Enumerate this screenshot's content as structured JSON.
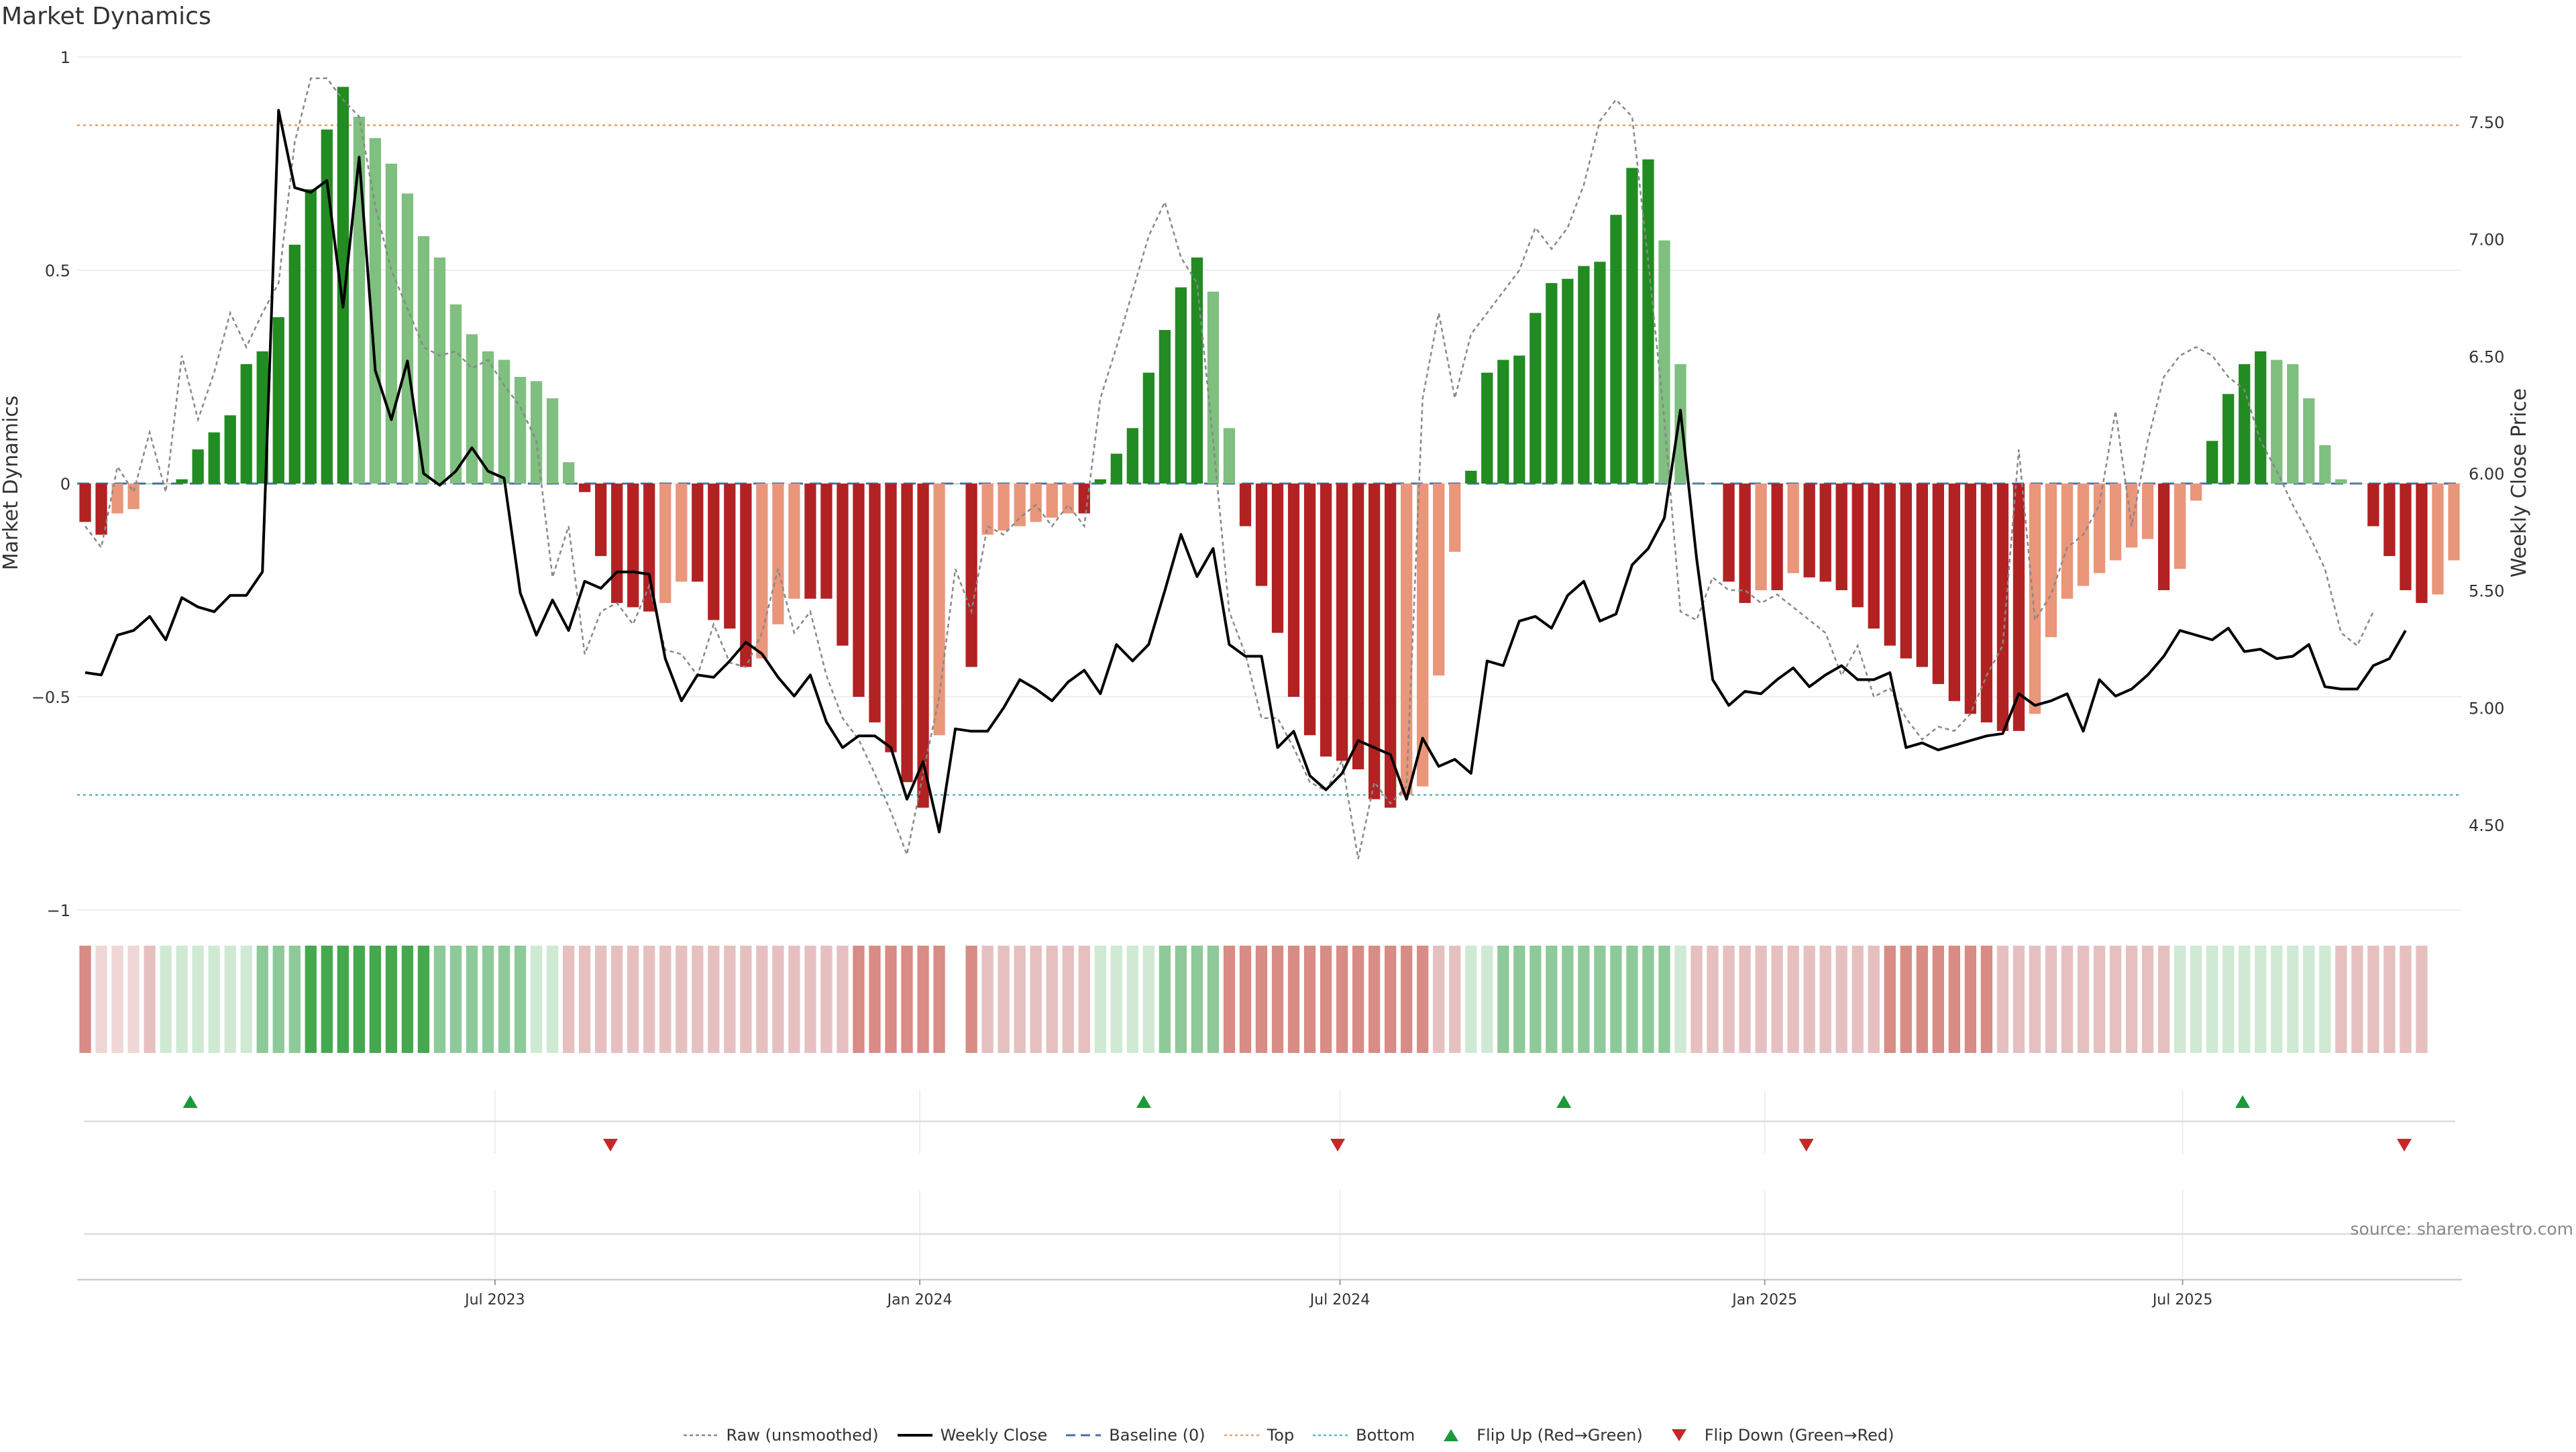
{
  "title": "Market Dynamics",
  "source": "source: sharemaestro.com",
  "colors": {
    "green_strong": "#228b22",
    "green_light": "#7fbf7f",
    "red_strong": "#b22222",
    "red_light": "#e9967a",
    "raw": "#888888",
    "close": "#000000",
    "baseline": "#4a6fa5",
    "top": "#e8a06a",
    "bottom": "#5ab4c8",
    "flip_up": "#1a9a3a",
    "flip_down": "#c62828"
  },
  "legend": [
    {
      "key": "raw",
      "label": "Raw (unsmoothed)",
      "icon": "dotted-line-icon"
    },
    {
      "key": "close",
      "label": "Weekly Close",
      "icon": "solid-line-icon"
    },
    {
      "key": "baseline",
      "label": "Baseline (0)",
      "icon": "dashed-line-icon"
    },
    {
      "key": "top",
      "label": "Top",
      "icon": "dotted-line-icon"
    },
    {
      "key": "bottom",
      "label": "Bottom",
      "icon": "dotted-line-icon"
    },
    {
      "key": "flip_up",
      "label": "Flip Up (Red→Green)",
      "icon": "triangle-up-icon"
    },
    {
      "key": "flip_down",
      "label": "Flip Down (Green→Red)",
      "icon": "triangle-down-icon"
    }
  ],
  "chart_data": {
    "type": "bar",
    "title": "Market Dynamics",
    "ylabel": "Market Dynamics",
    "y2label": "Weekly Close Price",
    "ylim": [
      -1,
      1
    ],
    "y2lim": [
      4.2,
      7.75
    ],
    "yticks": [
      "1",
      "0.5",
      "0",
      "−0.5",
      "−1"
    ],
    "y2ticks": [
      "7.50",
      "7.00",
      "6.50",
      "6.00",
      "5.50",
      "5.00",
      "4.50"
    ],
    "xrange": [
      "2023-01-01",
      "2025-10-30"
    ],
    "xticks": [
      {
        "date": "2023-07-01",
        "label": "Jul 2023"
      },
      {
        "date": "2024-01-01",
        "label": "Jan 2024"
      },
      {
        "date": "2024-07-01",
        "label": "Jul 2024"
      },
      {
        "date": "2025-01-01",
        "label": "Jan 2025"
      },
      {
        "date": "2025-07-01",
        "label": "Jul 2025"
      }
    ],
    "top_level": 0.84,
    "bottom_level": -0.73,
    "baseline": 0,
    "grid": true,
    "legend_position": "bottom",
    "series": [
      {
        "name": "Market Dynamics",
        "kind": "bar",
        "values": [
          -0.09,
          -0.12,
          -0.07,
          -0.06,
          0,
          0,
          0.01,
          0.08,
          0.12,
          0.16,
          0.28,
          0.31,
          0.39,
          0.56,
          0.69,
          0.83,
          0.93,
          0.86,
          0.81,
          0.75,
          0.68,
          0.58,
          0.53,
          0.42,
          0.35,
          0.31,
          0.29,
          0.25,
          0.24,
          0.2,
          0.05,
          -0.02,
          -0.17,
          -0.28,
          -0.29,
          -0.3,
          -0.28,
          -0.23,
          -0.23,
          -0.32,
          -0.34,
          -0.43,
          -0.41,
          -0.33,
          -0.27,
          -0.27,
          -0.27,
          -0.38,
          -0.5,
          -0.56,
          -0.63,
          -0.7,
          -0.76,
          -0.59,
          0,
          -0.43,
          -0.12,
          -0.11,
          -0.1,
          -0.09,
          -0.08,
          -0.07,
          -0.07,
          0.01,
          0.07,
          0.13,
          0.26,
          0.36,
          0.46,
          0.53,
          0.45,
          0.13,
          -0.1,
          -0.24,
          -0.35,
          -0.5,
          -0.59,
          -0.64,
          -0.65,
          -0.67,
          -0.74,
          -0.76,
          -0.73,
          -0.71,
          -0.45,
          -0.16,
          0.03,
          0.26,
          0.29,
          0.3,
          0.4,
          0.47,
          0.48,
          0.51,
          0.52,
          0.63,
          0.74,
          0.76,
          0.57,
          0.28,
          0,
          0,
          -0.23,
          -0.28,
          -0.25,
          -0.25,
          -0.21,
          -0.22,
          -0.23,
          -0.25,
          -0.29,
          -0.34,
          -0.38,
          -0.41,
          -0.43,
          -0.47,
          -0.51,
          -0.54,
          -0.56,
          -0.58,
          -0.58,
          -0.54,
          -0.36,
          -0.27,
          -0.24,
          -0.21,
          -0.18,
          -0.15,
          -0.13,
          -0.25,
          -0.2,
          -0.04,
          0.1,
          0.21,
          0.28,
          0.31,
          0.29,
          0.28,
          0.2,
          0.09,
          0.01,
          0,
          -0.1,
          -0.17,
          -0.25,
          -0.28,
          -0.26,
          -0.18
        ]
      },
      {
        "name": "Raw (unsmoothed)",
        "kind": "line",
        "values": [
          -0.1,
          -0.15,
          0.04,
          -0.02,
          0.12,
          -0.02,
          0.3,
          0.15,
          0.26,
          0.4,
          0.32,
          0.4,
          0.47,
          0.8,
          0.95,
          0.95,
          0.9,
          0.86,
          0.65,
          0.5,
          0.41,
          0.32,
          0.3,
          0.31,
          0.27,
          0.29,
          0.23,
          0.18,
          0.1,
          -0.22,
          -0.1,
          -0.4,
          -0.3,
          -0.28,
          -0.33,
          -0.24,
          -0.39,
          -0.4,
          -0.45,
          -0.33,
          -0.42,
          -0.43,
          -0.35,
          -0.2,
          -0.35,
          -0.3,
          -0.45,
          -0.55,
          -0.6,
          -0.68,
          -0.77,
          -0.87,
          -0.68,
          -0.5,
          -0.2,
          -0.3,
          -0.1,
          -0.12,
          -0.08,
          -0.05,
          -0.1,
          -0.05,
          -0.1,
          0.2,
          0.32,
          0.45,
          0.58,
          0.66,
          0.53,
          0.47,
          0.1,
          -0.3,
          -0.4,
          -0.55,
          -0.55,
          -0.62,
          -0.7,
          -0.72,
          -0.65,
          -0.88,
          -0.7,
          -0.75,
          -0.71,
          0.2,
          0.4,
          0.2,
          0.35,
          0.4,
          0.45,
          0.5,
          0.6,
          0.55,
          0.6,
          0.7,
          0.85,
          0.9,
          0.86,
          0.52,
          0.15,
          -0.3,
          -0.32,
          -0.22,
          -0.25,
          -0.25,
          -0.28,
          -0.26,
          -0.29,
          -0.32,
          -0.35,
          -0.45,
          -0.38,
          -0.5,
          -0.48,
          -0.55,
          -0.6,
          -0.57,
          -0.58,
          -0.54,
          -0.45,
          -0.38,
          0.08,
          -0.32,
          -0.26,
          -0.15,
          -0.12,
          -0.05,
          0.17,
          -0.1,
          0.1,
          0.25,
          0.3,
          0.32,
          0.3,
          0.25,
          0.22,
          0.1,
          0.03,
          -0.05,
          -0.12,
          -0.2,
          -0.35,
          -0.38,
          -0.3
        ]
      },
      {
        "name": "Weekly Close",
        "kind": "line",
        "axis": "right",
        "values": [
          5.15,
          5.14,
          5.31,
          5.33,
          5.39,
          5.29,
          5.47,
          5.43,
          5.41,
          5.48,
          5.48,
          5.58,
          7.55,
          7.22,
          7.2,
          7.25,
          6.71,
          7.35,
          6.44,
          6.23,
          6.48,
          6.0,
          5.95,
          6.01,
          6.11,
          6.01,
          5.98,
          5.49,
          5.31,
          5.46,
          5.33,
          5.54,
          5.51,
          5.58,
          5.58,
          5.57,
          5.21,
          5.03,
          5.14,
          5.13,
          5.2,
          5.28,
          5.23,
          5.13,
          5.05,
          5.14,
          4.94,
          4.83,
          4.88,
          4.88,
          4.83,
          4.61,
          4.77,
          4.47,
          4.91,
          4.9,
          4.9,
          5.0,
          5.12,
          5.08,
          5.03,
          5.11,
          5.16,
          5.06,
          5.27,
          5.2,
          5.27,
          5.5,
          5.74,
          5.56,
          5.68,
          5.27,
          5.22,
          5.22,
          4.83,
          4.9,
          4.71,
          4.65,
          4.72,
          4.86,
          4.83,
          4.8,
          4.61,
          4.87,
          4.75,
          4.78,
          4.72,
          5.2,
          5.18,
          5.37,
          5.39,
          5.34,
          5.48,
          5.54,
          5.37,
          5.4,
          5.61,
          5.68,
          5.81,
          6.27,
          5.64,
          5.12,
          5.01,
          5.07,
          5.06,
          5.12,
          5.17,
          5.09,
          5.14,
          5.18,
          5.12,
          5.12,
          5.15,
          4.83,
          4.85,
          4.82,
          4.84,
          4.86,
          4.88,
          4.89,
          5.06,
          5.01,
          5.03,
          5.06,
          4.9,
          5.12,
          5.05,
          5.08,
          5.14,
          5.22,
          5.33,
          5.31,
          5.29,
          5.34,
          5.24,
          5.25,
          5.21,
          5.22,
          5.27,
          5.09,
          5.08,
          5.08,
          5.18,
          5.21,
          5.33
        ]
      }
    ],
    "regime_strip": [
      -2,
      -1,
      -1,
      -1,
      -1,
      1,
      1,
      1,
      1,
      1,
      1,
      2,
      2,
      2,
      3,
      3,
      3,
      3,
      3,
      3,
      3,
      3,
      2,
      2,
      2,
      2,
      2,
      2,
      1,
      1,
      -1,
      -1,
      -1,
      -1,
      -1,
      -1,
      -1,
      -1,
      -1,
      -1,
      -1,
      -1,
      -1,
      -1,
      -1,
      -1,
      -1,
      -1,
      -2,
      -2,
      -2,
      -2,
      -2,
      -2,
      0,
      -2,
      -1,
      -1,
      -1,
      -1,
      -1,
      -1,
      -1,
      1,
      1,
      1,
      1,
      2,
      2,
      2,
      2,
      -2,
      -2,
      -2,
      -2,
      -2,
      -2,
      -2,
      -2,
      -2,
      -2,
      -2,
      -2,
      -2,
      -1,
      -1,
      1,
      1,
      2,
      2,
      2,
      2,
      2,
      2,
      2,
      2,
      2,
      2,
      2,
      1,
      -1,
      -1,
      -1,
      -1,
      -1,
      -1,
      -1,
      -1,
      -1,
      -1,
      -1,
      -1,
      -2,
      -2,
      -2,
      -2,
      -2,
      -2,
      -2,
      -1,
      -1,
      -1,
      -1,
      -1,
      -1,
      -1,
      -1,
      -1,
      -1,
      -1,
      1,
      1,
      1,
      1,
      1,
      1,
      1,
      1,
      1,
      1,
      -1,
      -1,
      -1,
      -1,
      -1,
      -1
    ],
    "flips": [
      {
        "date": "2023-02-19",
        "direction": "up"
      },
      {
        "date": "2023-08-20",
        "direction": "down"
      },
      {
        "date": "2024-04-07",
        "direction": "up"
      },
      {
        "date": "2024-06-30",
        "direction": "down"
      },
      {
        "date": "2024-10-06",
        "direction": "up"
      },
      {
        "date": "2025-01-19",
        "direction": "down"
      },
      {
        "date": "2025-07-27",
        "direction": "up"
      },
      {
        "date": "2025-10-05",
        "direction": "down"
      }
    ]
  }
}
